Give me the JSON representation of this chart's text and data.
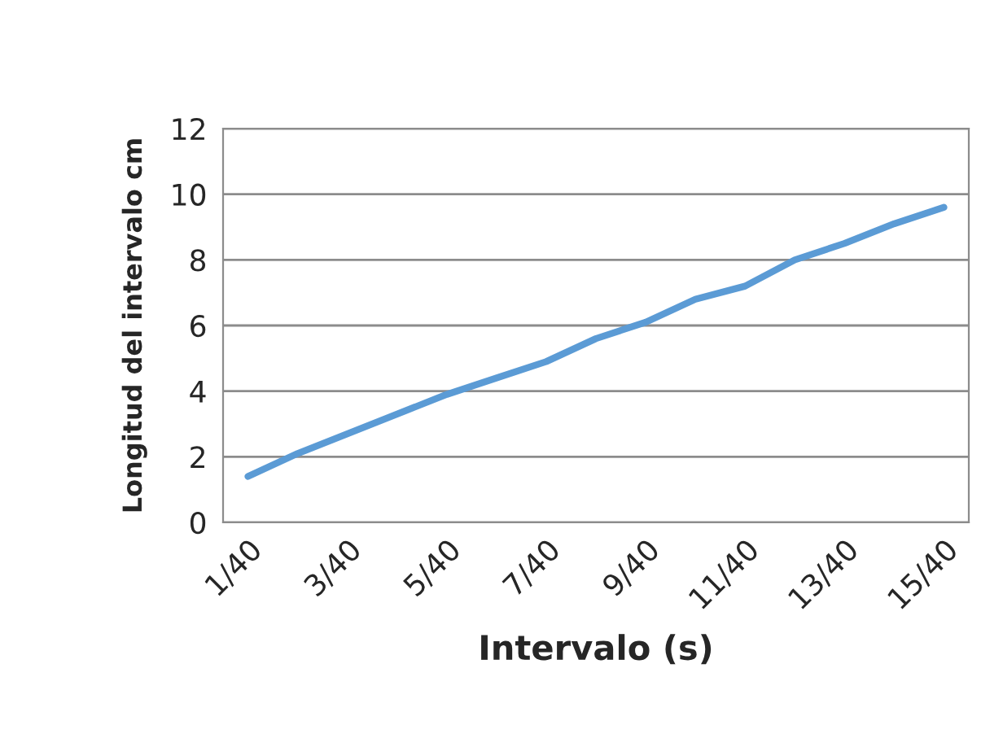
{
  "chart_data": {
    "type": "line",
    "xlabel": "Intervalo (s)",
    "ylabel": "Longitud del intervalo cm",
    "categories": [
      "1/40",
      null,
      "3/40",
      null,
      "5/40",
      null,
      "7/40",
      null,
      "9/40",
      null,
      "11/40",
      null,
      "13/40",
      null,
      "15/40"
    ],
    "series": [
      {
        "color": "#5b9bd5",
        "values": [
          1.4,
          2.1,
          2.7,
          3.3,
          3.9,
          4.4,
          4.9,
          5.6,
          6.1,
          6.8,
          7.2,
          8.0,
          8.5,
          9.1,
          9.6
        ]
      }
    ],
    "ylim": [
      0,
      12
    ],
    "yticks": [
      0,
      2,
      4,
      6,
      8,
      10,
      12
    ],
    "grid": "y",
    "marker": "none",
    "line_style": "solid"
  }
}
